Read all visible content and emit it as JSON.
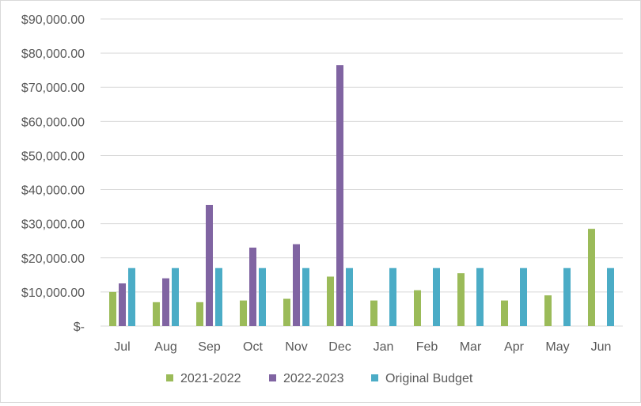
{
  "chart_data": {
    "type": "bar",
    "title": "",
    "xlabel": "",
    "ylabel": "",
    "categories": [
      "Jul",
      "Aug",
      "Sep",
      "Oct",
      "Nov",
      "Dec",
      "Jan",
      "Feb",
      "Mar",
      "Apr",
      "May",
      "Jun"
    ],
    "series": [
      {
        "name": "2021-2022",
        "color": "#9bbb59",
        "values": [
          10000,
          7000,
          7000,
          7500,
          8000,
          14500,
          7500,
          10500,
          15500,
          7500,
          9000,
          28500
        ]
      },
      {
        "name": "2022-2023",
        "color": "#8064a2",
        "values": [
          12500,
          14000,
          35500,
          23000,
          24000,
          76500,
          null,
          null,
          null,
          null,
          null,
          null
        ]
      },
      {
        "name": "Original Budget",
        "color": "#4bacc6",
        "values": [
          17000,
          17000,
          17000,
          17000,
          17000,
          17000,
          17000,
          17000,
          17000,
          17000,
          17000,
          17000
        ]
      }
    ],
    "ylim": [
      0,
      90000
    ],
    "yticks": [
      0,
      10000,
      20000,
      30000,
      40000,
      50000,
      60000,
      70000,
      80000,
      90000
    ],
    "ytick_labels": [
      "$-",
      "$10,000.00",
      "$20,000.00",
      "$30,000.00",
      "$40,000.00",
      "$50,000.00",
      "$60,000.00",
      "$70,000.00",
      "$80,000.00",
      "$90,000.00"
    ],
    "grid": true,
    "legend_position": "bottom"
  }
}
